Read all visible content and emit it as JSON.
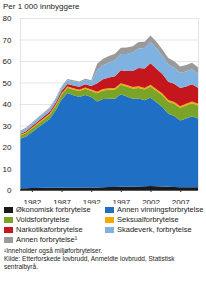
{
  "chart_data": {
    "type": "area",
    "title": "Per 1 000 innbyggere",
    "stacked": true,
    "grid": true,
    "x": [
      1980,
      1981,
      1982,
      1983,
      1984,
      1985,
      1986,
      1987,
      1988,
      1989,
      1990,
      1991,
      1992,
      1993,
      1994,
      1995,
      1996,
      1997,
      1998,
      1999,
      2000,
      2001,
      2002,
      2003,
      2004,
      2005,
      2006,
      2007,
      2008,
      2009,
      2010
    ],
    "xlim": [
      1980,
      2010
    ],
    "xticks": [
      1982,
      1987,
      1992,
      1997,
      2002,
      2007
    ],
    "ylim": [
      0,
      80
    ],
    "yticks": [
      0,
      10,
      20,
      30,
      40,
      50,
      60,
      70,
      80
    ],
    "series": [
      {
        "name": "Økonomisk forbrytelse",
        "color": "#1a1a1a",
        "values": [
          0.8,
          0.8,
          0.9,
          0.9,
          1,
          1,
          1,
          1.1,
          1.1,
          1.1,
          1.2,
          1.2,
          1.2,
          1.2,
          1.3,
          1.4,
          1.4,
          1.5,
          1.5,
          1.5,
          1.6,
          1.7,
          1.9,
          1.8,
          1.6,
          1.5,
          1.4,
          1.3,
          1.3,
          1.3,
          1.3
        ]
      },
      {
        "name": "Annen vinningsforbrytelse",
        "color": "#1f6fc5",
        "values": [
          23,
          24,
          26,
          28,
          30,
          32,
          36,
          41,
          44,
          43,
          42,
          43,
          42,
          40,
          41,
          41,
          41,
          43,
          42,
          41,
          41,
          40,
          41,
          39,
          37,
          34,
          33,
          31,
          32,
          33,
          32
        ]
      },
      {
        "name": "Voldsforbrytelse",
        "color": "#7aa428",
        "values": [
          1.5,
          1.6,
          1.7,
          1.8,
          1.9,
          2,
          2.1,
          2.3,
          2.5,
          2.6,
          2.8,
          2.9,
          3,
          3.8,
          4,
          4.2,
          4.3,
          4.5,
          4.6,
          4.7,
          4.9,
          5,
          5.2,
          5.3,
          5.5,
          5.6,
          5.7,
          5.9,
          6,
          6.1,
          6
        ]
      },
      {
        "name": "Seksualforbrytelse",
        "color": "#f5a800",
        "values": [
          0.4,
          0.4,
          0.4,
          0.5,
          0.5,
          0.5,
          0.5,
          0.5,
          0.5,
          0.6,
          0.6,
          0.6,
          0.6,
          0.7,
          0.7,
          0.7,
          0.7,
          0.7,
          0.7,
          0.7,
          0.8,
          0.8,
          0.8,
          0.8,
          0.8,
          0.8,
          0.8,
          0.8,
          0.8,
          0.8,
          0.8
        ]
      },
      {
        "name": "Narkotikaforbrytelse",
        "color": "#c4161c",
        "values": [
          0.4,
          0.5,
          0.6,
          0.7,
          0.8,
          0.9,
          1,
          1.1,
          1.2,
          1.3,
          1.4,
          1.5,
          1.6,
          4,
          4.5,
          5,
          5.5,
          6,
          6.5,
          7.5,
          8.5,
          9,
          10,
          9.5,
          9,
          8.5,
          8.5,
          8.5,
          8,
          8,
          7.5
        ]
      },
      {
        "name": "Skadeverk, forbrytelse",
        "color": "#7fb2e0",
        "values": [
          1,
          1.1,
          1.2,
          1.3,
          1.4,
          1.5,
          1.6,
          1.7,
          1.8,
          1.9,
          2,
          2,
          2.1,
          6,
          6.5,
          7,
          7.5,
          7.5,
          8,
          8.5,
          9,
          9.5,
          10,
          9.5,
          8.5,
          8,
          7.5,
          7,
          7,
          7,
          6.5
        ]
      },
      {
        "name": "Annen forbrytelse¹",
        "color": "#9a9a9a",
        "values": [
          0.5,
          0.5,
          0.5,
          0.5,
          0.5,
          0.5,
          0.5,
          0.5,
          0.5,
          0.5,
          0.5,
          0.5,
          0.5,
          3,
          3,
          3,
          3,
          3,
          3,
          3,
          3,
          3,
          3,
          3,
          3,
          3,
          3,
          3,
          3,
          3,
          3
        ]
      }
    ],
    "notes": [
      "¹Inneholder også miljøforbrytelser.",
      "Kilde: Etterforskede lovbrudd, Anmeldte lovbrudd, Statistisk sentralbyrå."
    ]
  }
}
